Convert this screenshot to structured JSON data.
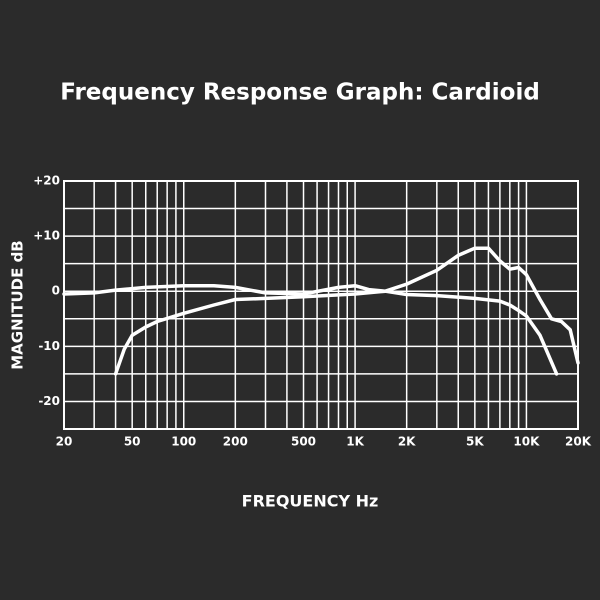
{
  "chart_data": {
    "type": "line",
    "title": "Frequency Response Graph: Cardioid",
    "x_label": "FREQUENCY Hz",
    "y_label": "MAGNITUDE dB",
    "xscale": "log",
    "xlim": [
      20,
      20000
    ],
    "xticks": [
      20,
      50,
      100,
      200,
      500,
      {
        "value": 1000,
        "label": "1K"
      },
      {
        "value": 2000,
        "label": "2K"
      },
      {
        "value": 5000,
        "label": "5K"
      },
      {
        "value": 10000,
        "label": "10K"
      },
      {
        "value": 20000,
        "label": "20K"
      }
    ],
    "xminor": [
      30,
      40,
      60,
      70,
      80,
      90,
      300,
      400,
      600,
      700,
      800,
      900,
      3000,
      4000,
      6000,
      7000,
      8000,
      9000
    ],
    "ylim": [
      -25,
      20
    ],
    "yticks": [
      {
        "value": 20,
        "label": "+20"
      },
      {
        "value": 10,
        "label": "+10"
      },
      0,
      -10,
      -20
    ],
    "yminor": [
      -25,
      -15,
      -5,
      5,
      15
    ],
    "grid": true,
    "series": [
      {
        "color": "#ffffff",
        "x": [
          20,
          30,
          40,
          60,
          100,
          150,
          200,
          300,
          500,
          800,
          1000,
          1200,
          1500,
          2000,
          3000,
          4000,
          5000,
          6000,
          7000,
          8000,
          9000,
          10000,
          12000,
          14000,
          16000,
          18000,
          20000
        ],
        "values": [
          -0.5,
          -0.3,
          0.2,
          0.7,
          1,
          1,
          0.7,
          -0.3,
          -0.5,
          0.7,
          1,
          0.3,
          0,
          1.3,
          3.8,
          6.5,
          7.8,
          7.8,
          5.5,
          4,
          4.3,
          3,
          -1.5,
          -5,
          -5.5,
          -7,
          -13
        ]
      },
      {
        "color": "#ffffff",
        "x": [
          40,
          45,
          50,
          60,
          70,
          100,
          150,
          200,
          300,
          500,
          1000,
          1500,
          2000,
          3000,
          5000,
          7000,
          8000,
          9000,
          10000,
          12000,
          15000
        ],
        "values": [
          -15,
          -10.5,
          -8,
          -6.5,
          -5.5,
          -4,
          -2.5,
          -1.5,
          -1.3,
          -1,
          -0.5,
          0,
          -0.6,
          -0.8,
          -1.3,
          -1.8,
          -2.5,
          -3.5,
          -4.5,
          -8,
          -15
        ]
      }
    ]
  }
}
